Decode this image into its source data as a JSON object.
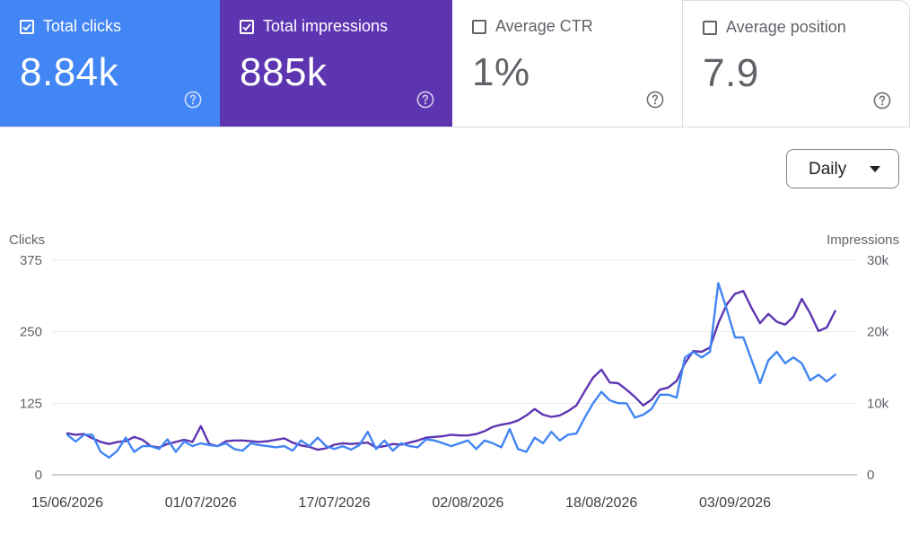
{
  "cards": [
    {
      "label": "Total clicks",
      "value": "8.84k",
      "checked": true,
      "color": "#4285f4"
    },
    {
      "label": "Total impressions",
      "value": "885k",
      "checked": true,
      "color": "#5e35b1"
    },
    {
      "label": "Average CTR",
      "value": "1%",
      "checked": false,
      "color": "#ffffff"
    },
    {
      "label": "Average position",
      "value": "7.9",
      "checked": false,
      "color": "#ffffff"
    }
  ],
  "granularity": {
    "selected": "Daily"
  },
  "icons": {
    "help": "help-circle-icon",
    "checkbox": "checkbox-icon",
    "caret": "caret-down-icon"
  },
  "chart_data": {
    "type": "line",
    "ylabel_left": "Clicks",
    "ylabel_right": "Impressions",
    "y_left_ticks": [
      "375",
      "250",
      "125",
      "0"
    ],
    "y_right_ticks": [
      "30k",
      "20k",
      "10k",
      "0"
    ],
    "ylim_left": [
      0,
      375
    ],
    "ylim_right": [
      0,
      30000
    ],
    "x_tick_labels": [
      "15/06/2026",
      "01/07/2026",
      "17/07/2026",
      "02/08/2026",
      "18/08/2026",
      "03/09/2026"
    ],
    "x_start": "15/06/2026",
    "grid": true,
    "series": [
      {
        "name": "Clicks",
        "axis": "left",
        "color": "#4285f4",
        "values": [
          70,
          58,
          70,
          70,
          40,
          30,
          42,
          65,
          40,
          50,
          50,
          45,
          62,
          40,
          58,
          50,
          55,
          52,
          50,
          55,
          45,
          42,
          55,
          52,
          50,
          48,
          50,
          42,
          60,
          50,
          65,
          50,
          45,
          50,
          44,
          52,
          75,
          45,
          60,
          42,
          55,
          50,
          48,
          62,
          60,
          55,
          50,
          55,
          60,
          45,
          60,
          55,
          48,
          80,
          45,
          40,
          65,
          55,
          75,
          60,
          70,
          72,
          100,
          125,
          145,
          130,
          125,
          125,
          100,
          105,
          115,
          140,
          140,
          135,
          205,
          215,
          205,
          215,
          335,
          290,
          240,
          240,
          200,
          160,
          200,
          215,
          195,
          205,
          195,
          165,
          175,
          163,
          175
        ],
        "color_hex": "#4285f4"
      },
      {
        "name": "Impressions",
        "axis": "right",
        "color": "#5e35b1",
        "values": [
          5800,
          5600,
          5700,
          5100,
          4600,
          4300,
          4600,
          4700,
          5300,
          4900,
          4000,
          3800,
          4300,
          4600,
          4900,
          4600,
          6800,
          4300,
          4000,
          4700,
          4800,
          4800,
          4700,
          4600,
          4700,
          4900,
          5100,
          4500,
          4100,
          3900,
          3500,
          3700,
          4200,
          4400,
          4300,
          4400,
          4500,
          3800,
          4000,
          4300,
          4200,
          4500,
          4800,
          5200,
          5300,
          5400,
          5600,
          5500,
          5500,
          5700,
          6100,
          6700,
          7000,
          7200,
          7600,
          8300,
          9200,
          8400,
          8100,
          8300,
          8900,
          9700,
          11700,
          13600,
          14700,
          12900,
          12800,
          11900,
          10900,
          9700,
          10500,
          11900,
          12200,
          13100,
          15600,
          17300,
          17200,
          17800,
          21200,
          23800,
          25300,
          25700,
          23300,
          21200,
          22500,
          21400,
          21000,
          22100,
          24600,
          22600,
          20100,
          20600,
          22900
        ]
      }
    ]
  }
}
